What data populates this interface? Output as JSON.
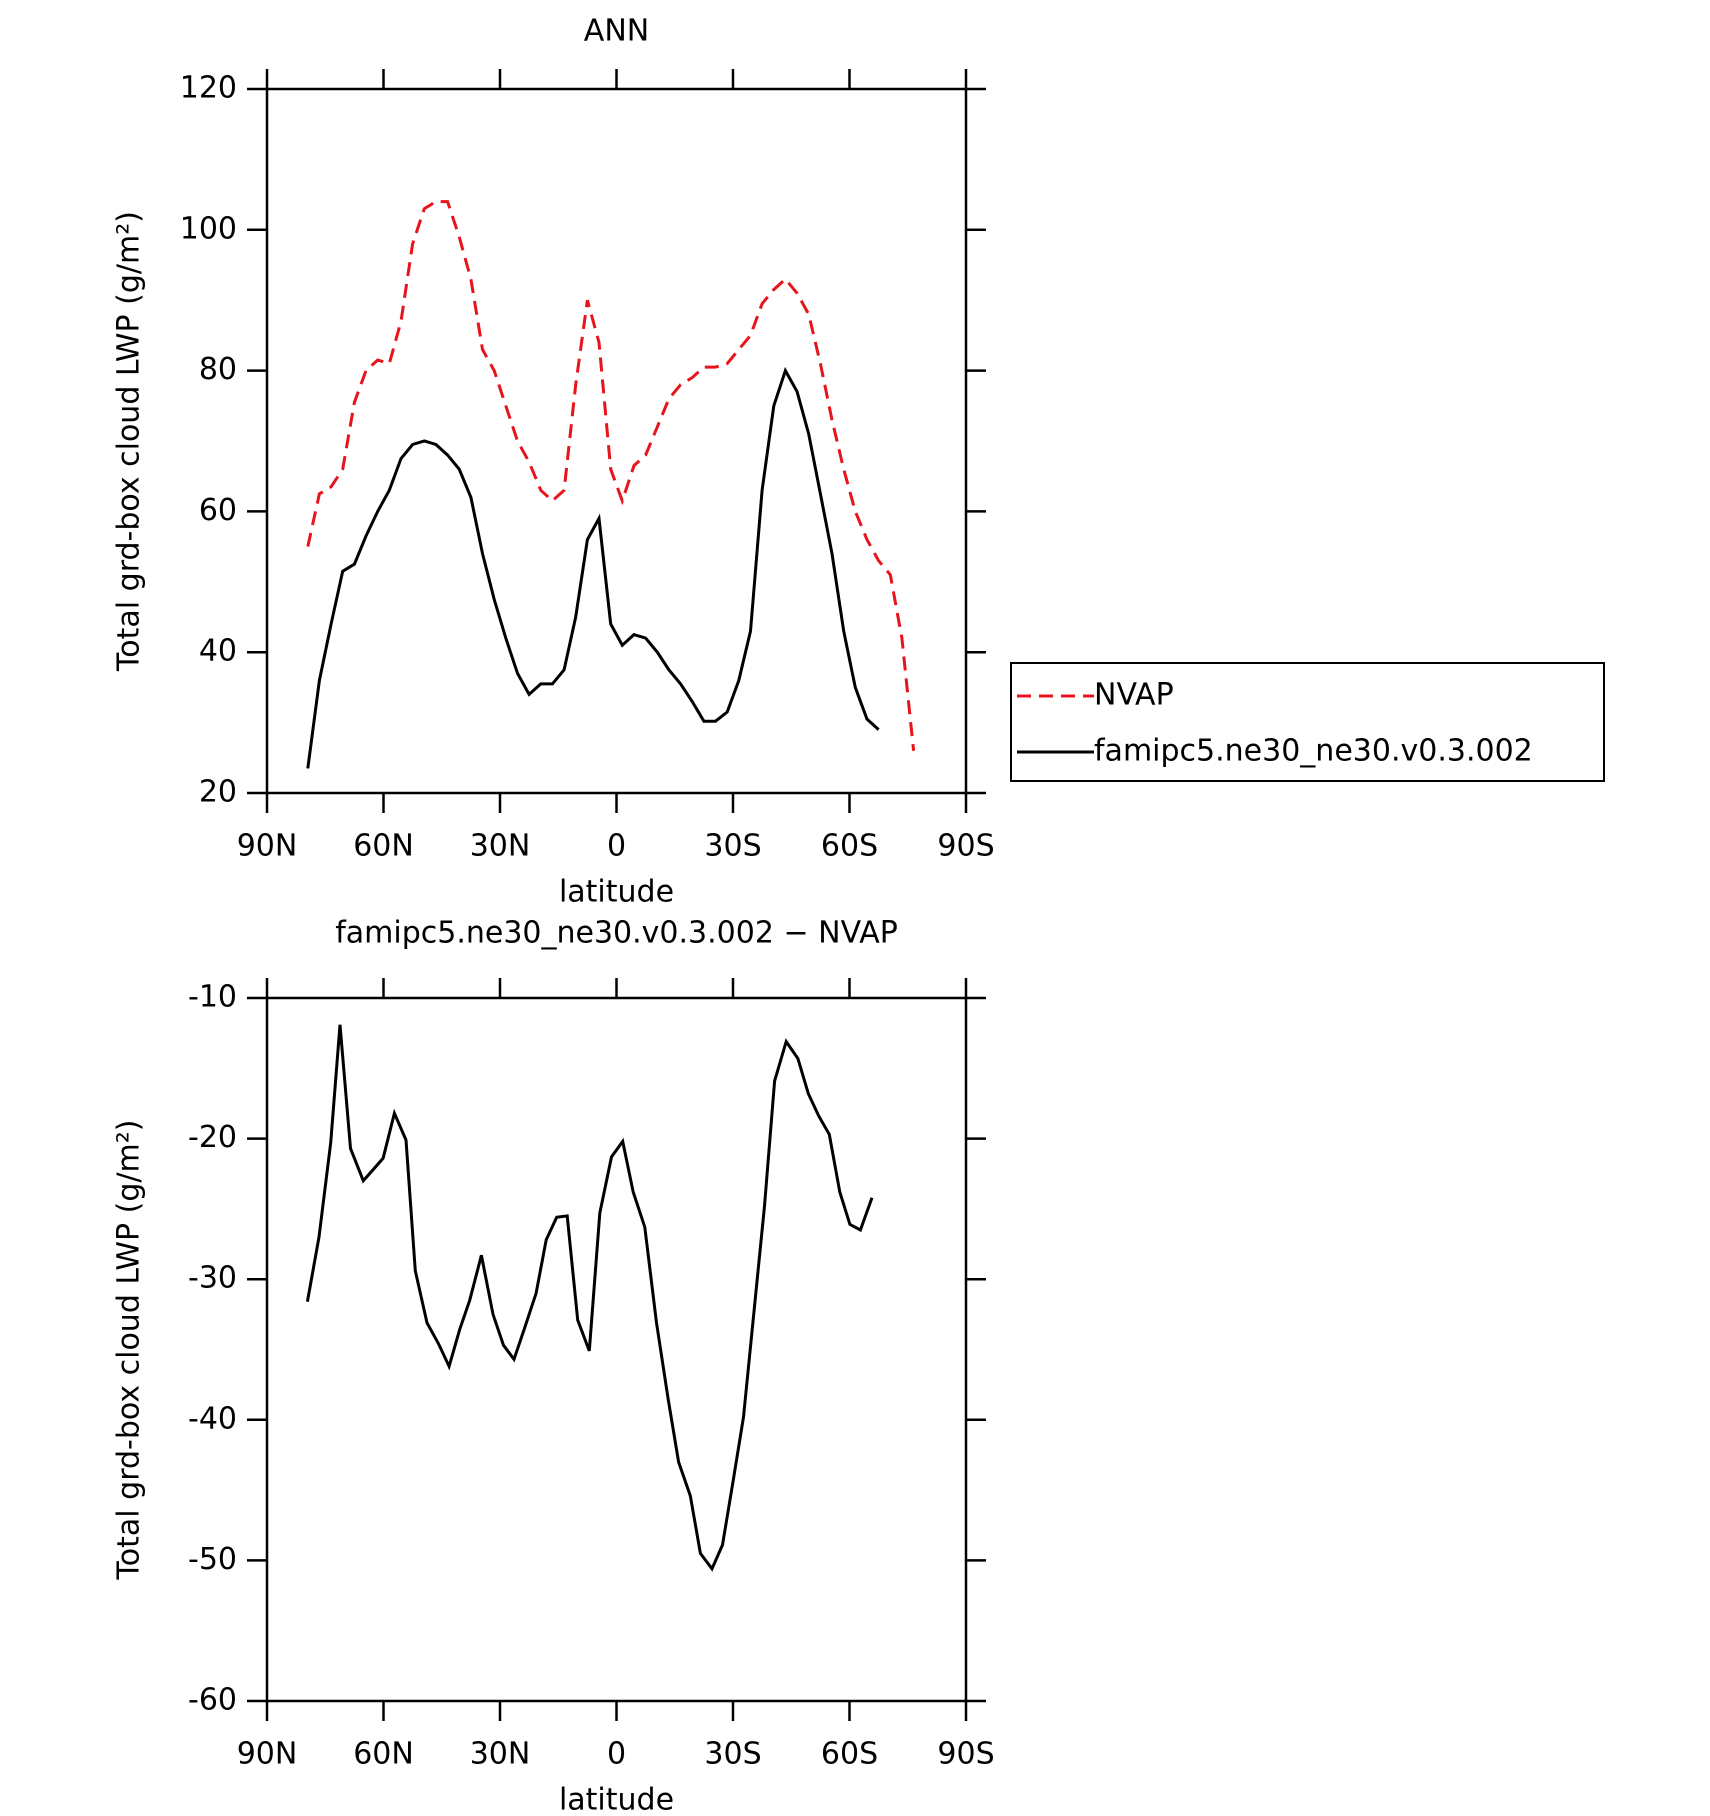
{
  "chart_data": [
    {
      "type": "line",
      "title": "ANN",
      "xlabel": "latitude",
      "ylabel": "Total grd-box cloud LWP (g/m²)",
      "x": [
        79.5,
        76.5,
        73.5,
        70.5,
        67.5,
        64.5,
        61.5,
        58.5,
        55.5,
        52.5,
        49.5,
        46.5,
        43.5,
        40.5,
        37.5,
        34.5,
        31.5,
        28.5,
        25.5,
        22.5,
        19.5,
        16.5,
        13.5,
        10.5,
        7.5,
        4.5,
        1.5,
        -1.5,
        -4.5,
        -7.5,
        -10.5,
        -13.5,
        -16.5,
        -19.5,
        -22.5,
        -25.5,
        -28.5,
        -31.5,
        -34.5,
        -37.5,
        -40.5,
        -43.5,
        -46.5,
        -49.5,
        -52.5,
        -55.5,
        -58.5,
        -61.5,
        -64.5,
        -67.5,
        -70.5,
        -73.5,
        -76.5
      ],
      "series": [
        {
          "name": "NVAP",
          "color": "#e8141c",
          "dash": true,
          "values": [
            55,
            62.5,
            63.5,
            66,
            75.5,
            80,
            81.5,
            81,
            87,
            98,
            103,
            104,
            104,
            99,
            93,
            83,
            80,
            75,
            70,
            67,
            63,
            61.5,
            63,
            78,
            90,
            84,
            66,
            61.5,
            66.5,
            68,
            72,
            76,
            78,
            79,
            80.5,
            80.5,
            81,
            83,
            85,
            89.5,
            91.5,
            93,
            91,
            88,
            81,
            73,
            66,
            60,
            56,
            53,
            51,
            42,
            26
          ]
        },
        {
          "name": "famipc5.ne30_ne30.v0.3.002",
          "color": "#000000",
          "dash": false,
          "values": [
            23.5,
            36,
            44,
            51.5,
            52.5,
            56.5,
            60,
            63,
            67.5,
            69.5,
            70,
            69.5,
            68,
            66,
            62,
            54,
            47.5,
            42,
            37,
            34,
            35.5,
            35.5,
            37.5,
            45,
            56,
            59,
            44,
            41,
            42.5,
            42,
            40,
            37.5,
            35.5,
            33,
            30.2,
            30.2,
            31.5,
            36,
            43,
            63,
            75,
            80,
            77,
            71,
            62.5,
            54,
            43,
            35,
            30.5,
            29,
            null,
            null,
            null
          ]
        }
      ],
      "xlim": [
        90,
        -90
      ],
      "xticks": [
        {
          "value": 90,
          "label": "90N"
        },
        {
          "value": 60,
          "label": "60N"
        },
        {
          "value": 30,
          "label": "30N"
        },
        0,
        {
          "value": -30,
          "label": "30S"
        },
        {
          "value": -60,
          "label": "60S"
        },
        {
          "value": -90,
          "label": "90S"
        }
      ],
      "ylim": [
        20,
        120
      ],
      "yticks": [
        20,
        40,
        60,
        80,
        100,
        120
      ],
      "legend": "outside right"
    },
    {
      "type": "line",
      "title": "famipc5.ne30_ne30.v0.3.002 − NVAP",
      "xlabel": "latitude",
      "ylabel": "Total grd-box cloud LWP (g/m²)",
      "x": [
        79.6,
        76.6,
        73.6,
        71.2,
        68.5,
        65.2,
        60.1,
        57.2,
        54.2,
        51.8,
        48.8,
        45.8,
        43.1,
        40.4,
        37.8,
        34.8,
        31.8,
        29.1,
        26.4,
        23.7,
        20.7,
        18.1,
        15.4,
        12.7,
        10.0,
        7.0,
        4.3,
        1.3,
        -1.6,
        -4.3,
        -7.3,
        -10.3,
        -13.3,
        -16.0,
        -19.0,
        -21.6,
        -24.6,
        -27.3,
        -30.0,
        -32.7,
        -35.4,
        -38.1,
        -40.7,
        -43.7,
        -46.7,
        -49.4,
        -52.1,
        -54.8,
        -57.5,
        -60.1,
        -62.8,
        -65.8
      ],
      "series": [
        {
          "name": "famipc5.ne30_ne30.v0.3.002",
          "color": "#000000",
          "dash": false,
          "values": [
            -31.6,
            -27,
            -20.3,
            -11.9,
            -20.7,
            -23,
            -21.4,
            -18.2,
            -20.1,
            -29.4,
            -33.1,
            -34.6,
            -36.2,
            -33.6,
            -31.5,
            -28.3,
            -32.5,
            -34.7,
            -35.7,
            -33.5,
            -31,
            -27.2,
            -25.6,
            -25.5,
            -32.9,
            -35.1,
            -25.3,
            -21.3,
            -20.2,
            -23.8,
            -26.3,
            -33.1,
            -38.5,
            -43,
            -45.4,
            -49.5,
            -50.6,
            -48.9,
            -44.4,
            -39.8,
            -32.3,
            -24.8,
            -15.9,
            -13.1,
            -14.3,
            -16.8,
            -18.4,
            -19.7,
            -23.8,
            -26.1,
            -26.5,
            -24.2
          ]
        }
      ],
      "xlim": [
        90,
        -90
      ],
      "xticks": [
        {
          "value": 90,
          "label": "90N"
        },
        {
          "value": 60,
          "label": "60N"
        },
        {
          "value": 30,
          "label": "30N"
        },
        0,
        {
          "value": -30,
          "label": "30S"
        },
        {
          "value": -60,
          "label": "60S"
        },
        {
          "value": -90,
          "label": "90S"
        }
      ],
      "ylim": [
        -60,
        -10
      ],
      "yticks": [
        -60,
        -50,
        -40,
        -30,
        -20,
        -10
      ]
    }
  ]
}
